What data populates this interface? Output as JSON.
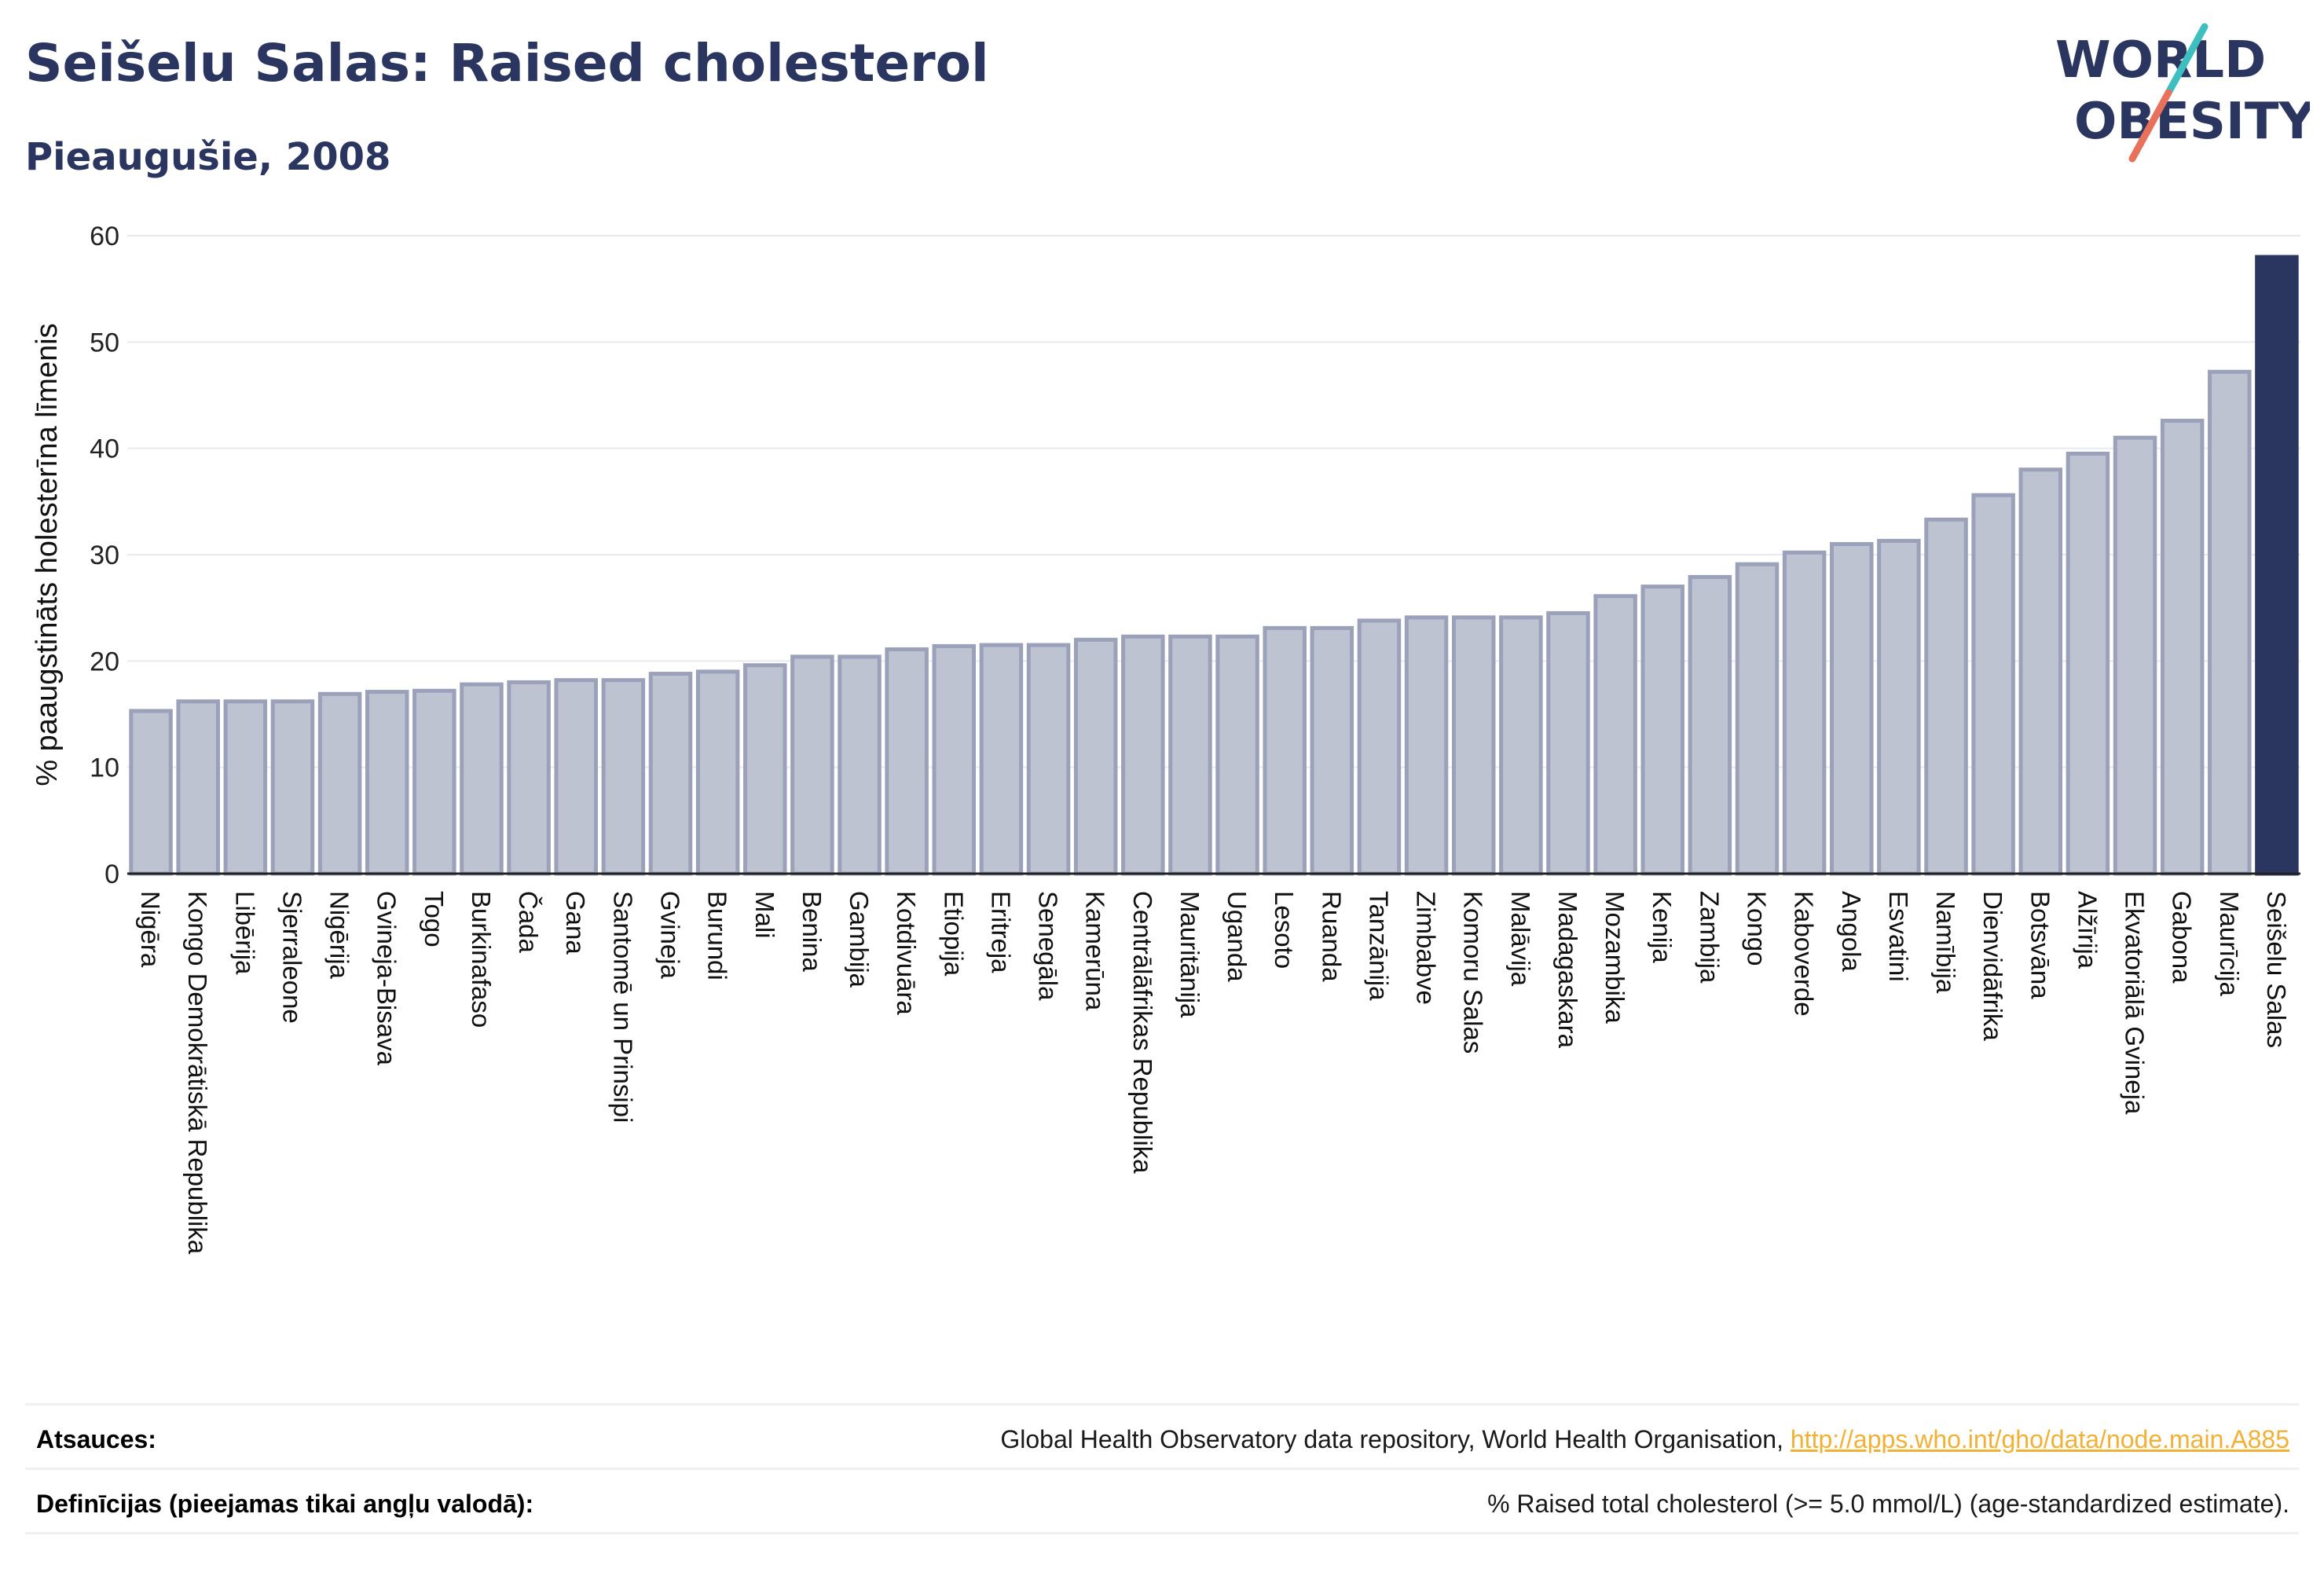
{
  "header": {
    "title": "Seišelu Salas: Raised cholesterol",
    "subtitle": "Pieaugušie, 2008"
  },
  "logo": {
    "line1": "WORLD",
    "line2": "OBESITY",
    "colors": {
      "text": "#2b3660",
      "slash_teal": "#3dbfc0",
      "slash_coral": "#e8715c"
    }
  },
  "colors": {
    "bar_fill": "#bec3d1",
    "bar_stroke": "#9aa1b8",
    "highlight": "#2b3660",
    "grid": "#e8eaf0"
  },
  "chart_data": {
    "type": "bar",
    "ylabel": "% paaugstināts holesterīna līmenis",
    "ylim": [
      0,
      60
    ],
    "yticks": [
      0,
      10,
      20,
      30,
      40,
      50,
      60
    ],
    "grid": true,
    "highlight": "Seišelu Salas",
    "categories": [
      "Nigēra",
      "Kongo Demokrātiskā Republika",
      "Libērija",
      "Sjerraleone",
      "Nigērija",
      "Gvineja-Bisava",
      "Togo",
      "Burkinafaso",
      "Čada",
      "Gana",
      "Santomē un Prinsipi",
      "Gvineja",
      "Burundi",
      "Mali",
      "Benina",
      "Gambija",
      "Kotdivuāra",
      "Etiopija",
      "Eritreja",
      "Senegāla",
      "Kamerūna",
      "Centrālāfrikas Republika",
      "Mauritānija",
      "Uganda",
      "Lesoto",
      "Ruanda",
      "Tanzānija",
      "Zimbabve",
      "Komoru Salas",
      "Malāvija",
      "Madagaskara",
      "Mozambika",
      "Kenija",
      "Zambija",
      "Kongo",
      "Kaboverde",
      "Angola",
      "Esvatini",
      "Namībija",
      "Dienvidāfrika",
      "Botsvāna",
      "Alžīrija",
      "Ekvatoriālā Gvineja",
      "Gabona",
      "Maurīcija",
      "Seišelu Salas"
    ],
    "values": [
      15.3,
      16.2,
      16.2,
      16.2,
      16.9,
      17.1,
      17.2,
      17.8,
      18.0,
      18.2,
      18.2,
      18.8,
      19.0,
      19.6,
      20.4,
      20.4,
      21.1,
      21.4,
      21.5,
      21.5,
      22.0,
      22.3,
      22.3,
      22.3,
      23.1,
      23.1,
      23.8,
      24.1,
      24.1,
      24.1,
      24.5,
      26.1,
      27.0,
      27.9,
      29.1,
      30.2,
      31.0,
      31.3,
      33.3,
      35.6,
      38.0,
      39.5,
      41.0,
      42.6,
      47.2,
      58.0
    ]
  },
  "footer": {
    "sources_label": "Atsauces:",
    "sources_text": "Global Health Observatory data repository, World Health Organisation, ",
    "sources_link": "http://apps.who.int/gho/data/node.main.A885",
    "definitions_label": "Definīcijas (pieejamas tikai angļu valodā):",
    "definitions_text": "% Raised total cholesterol (>= 5.0 mmol/L) (age-standardized estimate)."
  }
}
